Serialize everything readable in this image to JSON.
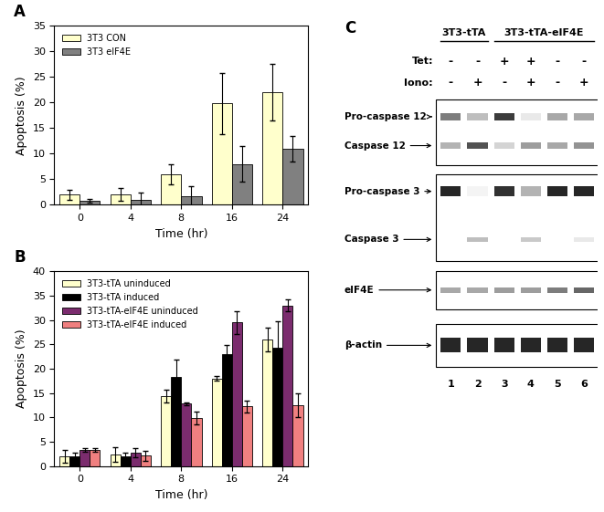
{
  "chart_data": [
    {
      "type": "bar",
      "title": "A",
      "x_label": "Time (hr)",
      "y_label": "Apoptosis (%)",
      "categories": [
        "0",
        "4",
        "8",
        "16",
        "24"
      ],
      "series": [
        {
          "name": "3T3 CON",
          "color": "#ffffcc",
          "values": [
            2,
            2,
            6,
            19.8,
            22
          ],
          "errors": [
            1,
            1.2,
            2,
            6,
            5.5
          ]
        },
        {
          "name": "3T3 eIF4E",
          "color": "#808080",
          "values": [
            0.8,
            1,
            1.7,
            8,
            11
          ],
          "errors": [
            0.3,
            1.3,
            2,
            3.5,
            2.5
          ]
        }
      ],
      "ylim": [
        0,
        35
      ],
      "yticks": [
        0,
        5,
        10,
        15,
        20,
        25,
        30,
        35
      ],
      "grid": false,
      "legend": "upper left"
    },
    {
      "type": "bar",
      "title": "B",
      "x_label": "Time (hr)",
      "y_label": "Apoptosis (%)",
      "categories": [
        "0",
        "4",
        "8",
        "16",
        "24"
      ],
      "series": [
        {
          "name": "3T3-tTA uninduced",
          "color": "#ffffcc",
          "values": [
            2,
            2.3,
            14.3,
            18,
            26
          ],
          "errors": [
            1.3,
            1.5,
            1.3,
            0.5,
            2.5
          ]
        },
        {
          "name": "3T3-tTA induced",
          "color": "#000000",
          "values": [
            2,
            2,
            18.3,
            23,
            24.3
          ],
          "errors": [
            0.8,
            0.8,
            3.5,
            1.8,
            5.5
          ]
        },
        {
          "name": "3T3-tTA-eIF4E uninduced",
          "color": "#7b2c6e",
          "values": [
            3.3,
            2.7,
            12.8,
            29.5,
            33
          ],
          "errors": [
            0.3,
            1,
            0.3,
            2.3,
            1.2
          ]
        },
        {
          "name": "3T3-tTA-eIF4E induced",
          "color": "#f08080",
          "values": [
            3.3,
            2.1,
            9.8,
            12.2,
            12.5
          ],
          "errors": [
            0.4,
            1,
            1.3,
            1.3,
            2.5
          ]
        }
      ],
      "ylim": [
        0,
        40
      ],
      "yticks": [
        0,
        5,
        10,
        15,
        20,
        25,
        30,
        35,
        40
      ],
      "grid": false,
      "legend": "upper left"
    }
  ],
  "blot": {
    "title": "C",
    "groups": [
      {
        "label": "3T3-tTA",
        "lanes": 2
      },
      {
        "label": "3T3-tTA-eIF4E",
        "lanes": 4
      }
    ],
    "treatments": [
      {
        "label": "Tet:",
        "values": [
          "-",
          "-",
          "+",
          "+",
          "-",
          "-"
        ]
      },
      {
        "label": "Iono:",
        "values": [
          "-",
          "+",
          "-",
          "+",
          "-",
          "+"
        ]
      }
    ],
    "panels": [
      [
        "Pro-caspase 12",
        "Caspase 12"
      ],
      [
        "Pro-caspase 3",
        "Caspase 3"
      ],
      [
        "eIF4E"
      ],
      [
        "β-actin"
      ]
    ],
    "lanes": [
      "1",
      "2",
      "3",
      "4",
      "5",
      "6"
    ]
  }
}
